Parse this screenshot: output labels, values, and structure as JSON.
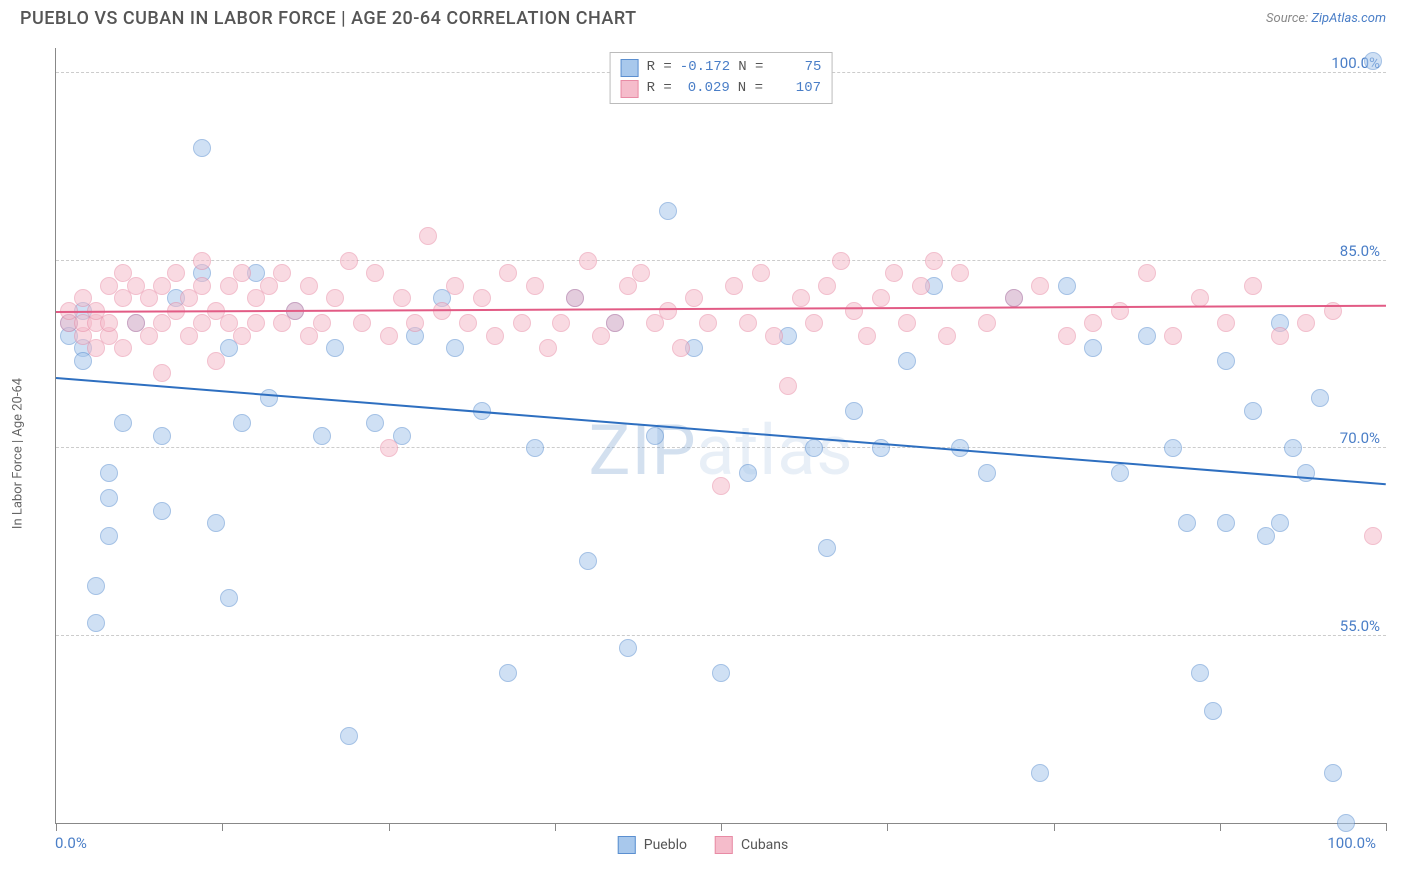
{
  "title": "PUEBLO VS CUBAN IN LABOR FORCE | AGE 20-64 CORRELATION CHART",
  "source_prefix": "Source: ",
  "source_link": "ZipAtlas.com",
  "yaxis_label": "In Labor Force | Age 20-64",
  "watermark_a": "ZIP",
  "watermark_b": "atlas",
  "chart": {
    "type": "scatter",
    "xlim": [
      0,
      100
    ],
    "ylim": [
      40,
      102
    ],
    "x_min_label": "0.0%",
    "x_max_label": "100.0%",
    "xtick_positions": [
      0,
      12.5,
      25,
      37.5,
      50,
      62.5,
      75,
      87.5,
      100
    ],
    "y_gridlines": [
      55,
      70,
      85,
      100
    ],
    "y_labels": [
      "55.0%",
      "70.0%",
      "85.0%",
      "100.0%"
    ],
    "grid_color": "#cccccc",
    "background_color": "#ffffff",
    "point_radius": 9,
    "point_opacity": 0.55,
    "trendline_width": 2
  },
  "series": [
    {
      "name": "Pueblo",
      "color_fill": "#a8c8ec",
      "color_stroke": "#5b8fd0",
      "trend_color": "#2e6fc0",
      "R": "-0.172",
      "N": "75",
      "trend": {
        "y_left": 75.5,
        "y_right": 67.0
      },
      "points": [
        [
          1,
          80
        ],
        [
          1,
          79
        ],
        [
          2,
          78
        ],
        [
          2,
          81
        ],
        [
          2,
          77
        ],
        [
          3,
          56
        ],
        [
          3,
          59
        ],
        [
          4,
          63
        ],
        [
          4,
          68
        ],
        [
          4,
          66
        ],
        [
          5,
          72
        ],
        [
          6,
          80
        ],
        [
          8,
          71
        ],
        [
          8,
          65
        ],
        [
          9,
          82
        ],
        [
          11,
          94
        ],
        [
          11,
          84
        ],
        [
          12,
          64
        ],
        [
          13,
          58
        ],
        [
          13,
          78
        ],
        [
          14,
          72
        ],
        [
          15,
          84
        ],
        [
          16,
          74
        ],
        [
          18,
          81
        ],
        [
          20,
          71
        ],
        [
          21,
          78
        ],
        [
          22,
          47
        ],
        [
          24,
          72
        ],
        [
          26,
          71
        ],
        [
          27,
          79
        ],
        [
          29,
          82
        ],
        [
          30,
          78
        ],
        [
          32,
          73
        ],
        [
          34,
          52
        ],
        [
          36,
          70
        ],
        [
          39,
          82
        ],
        [
          40,
          61
        ],
        [
          42,
          80
        ],
        [
          43,
          54
        ],
        [
          45,
          71
        ],
        [
          46,
          89
        ],
        [
          48,
          78
        ],
        [
          50,
          52
        ],
        [
          52,
          68
        ],
        [
          55,
          79
        ],
        [
          57,
          70
        ],
        [
          58,
          62
        ],
        [
          60,
          73
        ],
        [
          62,
          70
        ],
        [
          64,
          77
        ],
        [
          66,
          83
        ],
        [
          68,
          70
        ],
        [
          70,
          68
        ],
        [
          72,
          82
        ],
        [
          74,
          44
        ],
        [
          76,
          83
        ],
        [
          78,
          78
        ],
        [
          80,
          68
        ],
        [
          82,
          79
        ],
        [
          84,
          70
        ],
        [
          85,
          64
        ],
        [
          86,
          52
        ],
        [
          87,
          49
        ],
        [
          88,
          77
        ],
        [
          88,
          64
        ],
        [
          90,
          73
        ],
        [
          91,
          63
        ],
        [
          92,
          80
        ],
        [
          92,
          64
        ],
        [
          93,
          70
        ],
        [
          94,
          68
        ],
        [
          95,
          74
        ],
        [
          96,
          44
        ],
        [
          97,
          40
        ],
        [
          99,
          101
        ]
      ]
    },
    {
      "name": "Cubans",
      "color_fill": "#f5bccb",
      "color_stroke": "#e88ba5",
      "trend_color": "#e25b85",
      "R": "0.029",
      "N": "107",
      "trend": {
        "y_left": 80.8,
        "y_right": 81.3
      },
      "points": [
        [
          1,
          80
        ],
        [
          1,
          81
        ],
        [
          2,
          79
        ],
        [
          2,
          80
        ],
        [
          2,
          82
        ],
        [
          3,
          78
        ],
        [
          3,
          80
        ],
        [
          3,
          81
        ],
        [
          4,
          79
        ],
        [
          4,
          80
        ],
        [
          4,
          83
        ],
        [
          5,
          78
        ],
        [
          5,
          82
        ],
        [
          5,
          84
        ],
        [
          6,
          80
        ],
        [
          6,
          83
        ],
        [
          7,
          79
        ],
        [
          7,
          82
        ],
        [
          8,
          76
        ],
        [
          8,
          80
        ],
        [
          8,
          83
        ],
        [
          9,
          84
        ],
        [
          9,
          81
        ],
        [
          10,
          79
        ],
        [
          10,
          82
        ],
        [
          11,
          80
        ],
        [
          11,
          83
        ],
        [
          11,
          85
        ],
        [
          12,
          77
        ],
        [
          12,
          81
        ],
        [
          13,
          83
        ],
        [
          13,
          80
        ],
        [
          14,
          84
        ],
        [
          14,
          79
        ],
        [
          15,
          82
        ],
        [
          15,
          80
        ],
        [
          16,
          83
        ],
        [
          17,
          80
        ],
        [
          17,
          84
        ],
        [
          18,
          81
        ],
        [
          19,
          79
        ],
        [
          19,
          83
        ],
        [
          20,
          80
        ],
        [
          21,
          82
        ],
        [
          22,
          85
        ],
        [
          23,
          80
        ],
        [
          24,
          84
        ],
        [
          25,
          79
        ],
        [
          25,
          70
        ],
        [
          26,
          82
        ],
        [
          27,
          80
        ],
        [
          28,
          87
        ],
        [
          29,
          81
        ],
        [
          30,
          83
        ],
        [
          31,
          80
        ],
        [
          32,
          82
        ],
        [
          33,
          79
        ],
        [
          34,
          84
        ],
        [
          35,
          80
        ],
        [
          36,
          83
        ],
        [
          37,
          78
        ],
        [
          38,
          80
        ],
        [
          39,
          82
        ],
        [
          40,
          85
        ],
        [
          41,
          79
        ],
        [
          42,
          80
        ],
        [
          43,
          83
        ],
        [
          44,
          84
        ],
        [
          45,
          80
        ],
        [
          46,
          81
        ],
        [
          47,
          78
        ],
        [
          48,
          82
        ],
        [
          49,
          80
        ],
        [
          50,
          67
        ],
        [
          51,
          83
        ],
        [
          52,
          80
        ],
        [
          53,
          84
        ],
        [
          54,
          79
        ],
        [
          55,
          75
        ],
        [
          56,
          82
        ],
        [
          57,
          80
        ],
        [
          58,
          83
        ],
        [
          59,
          85
        ],
        [
          60,
          81
        ],
        [
          61,
          79
        ],
        [
          62,
          82
        ],
        [
          63,
          84
        ],
        [
          64,
          80
        ],
        [
          65,
          83
        ],
        [
          66,
          85
        ],
        [
          67,
          79
        ],
        [
          68,
          84
        ],
        [
          70,
          80
        ],
        [
          72,
          82
        ],
        [
          74,
          83
        ],
        [
          76,
          79
        ],
        [
          78,
          80
        ],
        [
          80,
          81
        ],
        [
          82,
          84
        ],
        [
          84,
          79
        ],
        [
          86,
          82
        ],
        [
          88,
          80
        ],
        [
          90,
          83
        ],
        [
          92,
          79
        ],
        [
          94,
          80
        ],
        [
          96,
          81
        ],
        [
          99,
          63
        ]
      ]
    }
  ],
  "legend_top": {
    "r_label": "R =",
    "n_label": "N ="
  },
  "legend_bottom": [
    {
      "label": "Pueblo"
    },
    {
      "label": "Cubans"
    }
  ]
}
